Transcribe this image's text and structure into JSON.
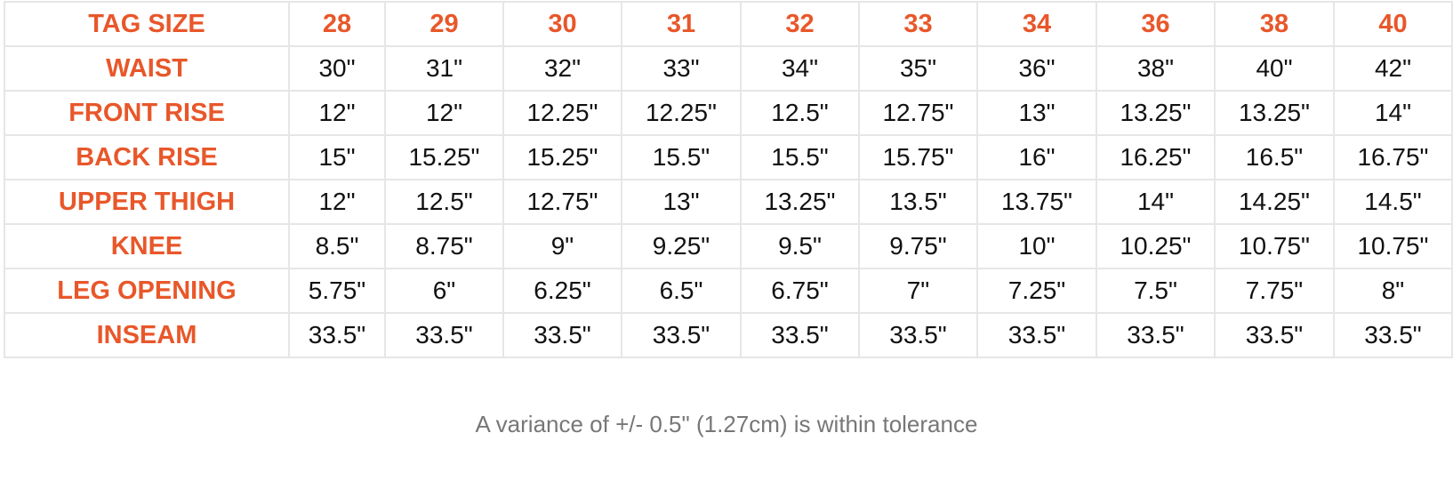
{
  "table": {
    "header": [
      "TAG SIZE",
      "28",
      "29",
      "30",
      "31",
      "32",
      "33",
      "34",
      "36",
      "38",
      "40"
    ],
    "rows": [
      [
        "WAIST",
        "30\"",
        "31\"",
        "32\"",
        "33\"",
        "34\"",
        "35\"",
        "36\"",
        "38\"",
        "40\"",
        "42\""
      ],
      [
        "FRONT RISE",
        "12\"",
        "12\"",
        "12.25\"",
        "12.25\"",
        "12.5\"",
        "12.75\"",
        "13\"",
        "13.25\"",
        "13.25\"",
        "14\""
      ],
      [
        "BACK RISE",
        "15\"",
        "15.25\"",
        "15.25\"",
        "15.5\"",
        "15.5\"",
        "15.75\"",
        "16\"",
        "16.25\"",
        "16.5\"",
        "16.75\""
      ],
      [
        "UPPER THIGH",
        "12\"",
        "12.5\"",
        "12.75\"",
        "13\"",
        "13.25\"",
        "13.5\"",
        "13.75\"",
        "14\"",
        "14.25\"",
        "14.5\""
      ],
      [
        "KNEE",
        "8.5\"",
        "8.75\"",
        "9\"",
        "9.25\"",
        "9.5\"",
        "9.75\"",
        "10\"",
        "10.25\"",
        "10.75\"",
        "10.75\""
      ],
      [
        "LEG OPENING",
        "5.75\"",
        "6\"",
        "6.25\"",
        "6.5\"",
        "6.75\"",
        "7\"",
        "7.25\"",
        "7.5\"",
        "7.75\"",
        "8\""
      ],
      [
        "INSEAM",
        "33.5\"",
        "33.5\"",
        "33.5\"",
        "33.5\"",
        "33.5\"",
        "33.5\"",
        "33.5\"",
        "33.5\"",
        "33.5\"",
        "33.5\""
      ]
    ]
  },
  "note": "A variance of +/- 0.5\" (1.27cm) is within tolerance"
}
